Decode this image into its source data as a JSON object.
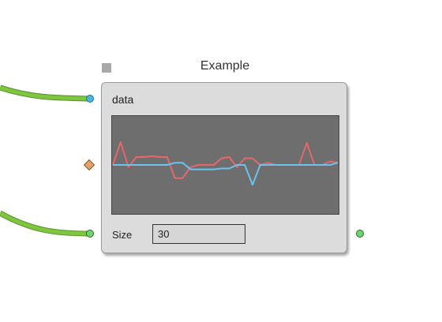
{
  "node": {
    "title": "Example",
    "input_label": "data",
    "size_label": "Size",
    "size_value": "30"
  },
  "colors": {
    "wire": "#7ec63f",
    "port_input_data": "#49b6e0",
    "port_input_param": "#e8a06a",
    "port_green": "#6fd36f",
    "series_red": "#e8676a",
    "series_blue": "#6cc3ef",
    "plot_bg": "#6e6e6e"
  },
  "chart_data": {
    "type": "line",
    "x": [
      0,
      1,
      2,
      3,
      4,
      5,
      6,
      7,
      8,
      9,
      10,
      11,
      12,
      13,
      14,
      15,
      16,
      17,
      18,
      19,
      20,
      21,
      22,
      23,
      24,
      25,
      26,
      27,
      28,
      29
    ],
    "ylim": [
      -1,
      1
    ],
    "series": [
      {
        "values": [
          0.0,
          0.52,
          -0.05,
          0.18,
          0.18,
          0.2,
          0.18,
          0.18,
          -0.3,
          -0.3,
          -0.05,
          0.0,
          0.0,
          0.0,
          0.15,
          0.18,
          -0.05,
          0.15,
          0.15,
          0.0,
          0.05,
          0.0,
          0.0,
          0.0,
          0.0,
          0.5,
          0.0,
          0.0,
          0.08,
          0.05
        ]
      },
      {
        "values": [
          0.0,
          0.0,
          0.0,
          0.0,
          0.0,
          0.0,
          0.0,
          0.0,
          0.05,
          0.05,
          -0.1,
          -0.1,
          -0.1,
          -0.1,
          -0.08,
          -0.08,
          0.0,
          0.0,
          -0.45,
          0.0,
          0.0,
          0.0,
          0.0,
          0.0,
          0.0,
          0.0,
          0.0,
          0.0,
          0.0,
          0.05
        ]
      }
    ]
  }
}
